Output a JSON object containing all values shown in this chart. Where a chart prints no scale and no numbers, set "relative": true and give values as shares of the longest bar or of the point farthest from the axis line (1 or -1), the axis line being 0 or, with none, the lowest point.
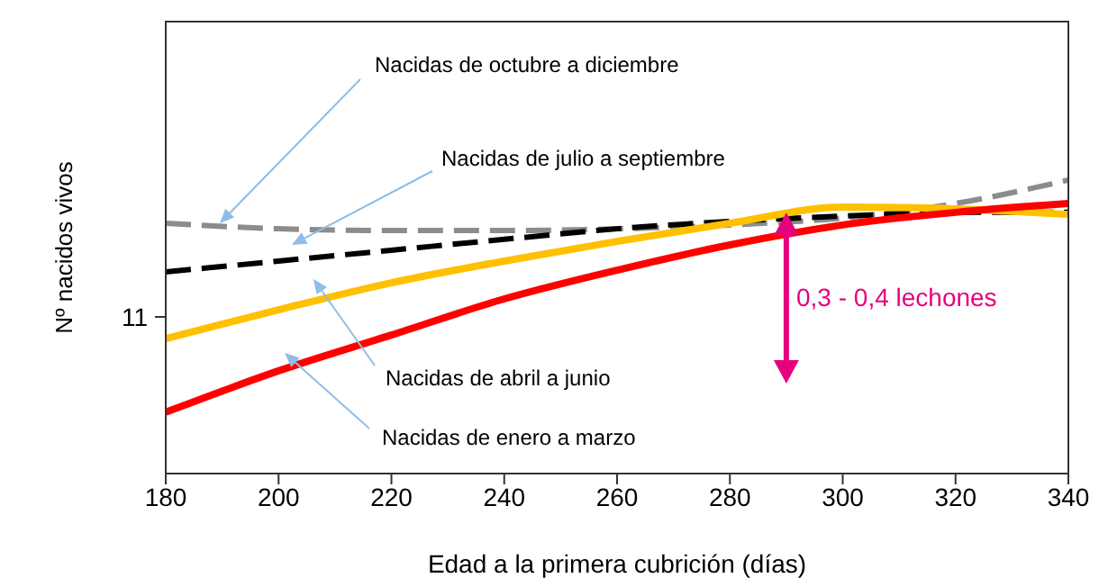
{
  "chart_data": {
    "type": "line",
    "relative": true,
    "xlabel": "Edad a la primera cubrición (días)",
    "ylabel": "Nº nacidos vivos",
    "x": [
      180,
      200,
      220,
      240,
      260,
      280,
      300,
      320,
      340
    ],
    "xlim": [
      180,
      340
    ],
    "xticks": [
      180,
      200,
      220,
      240,
      260,
      280,
      300,
      320,
      340
    ],
    "marker": "none",
    "series": [
      {
        "name": "Nacidas de octubre a diciembre",
        "color": "#8c8c8c",
        "line_style": "dashed",
        "values": [
          0.853,
          0.834,
          0.828,
          0.828,
          0.834,
          0.847,
          0.871,
          0.92,
          1
        ]
      },
      {
        "name": "Nacidas de julio a septiembre",
        "color": "#000000",
        "line_style": "dashed",
        "values": [
          0.687,
          0.724,
          0.761,
          0.798,
          0.834,
          0.859,
          0.877,
          0.89,
          0.89
        ]
      },
      {
        "name": "Nacidas de abril a junio",
        "color": "#ffc000",
        "line_style": "solid",
        "values": [
          0.46,
          0.558,
          0.65,
          0.724,
          0.791,
          0.853,
          0.908,
          0.902,
          0.883
        ]
      },
      {
        "name": "Nacidas de enero a marzo",
        "color": "#ff0000",
        "line_style": "solid",
        "values": [
          0.209,
          0.35,
          0.472,
          0.595,
          0.693,
          0.779,
          0.847,
          0.89,
          0.92
        ]
      }
    ],
    "annotations": [
      "11",
      "0,3 - 0,4 lechones"
    ]
  }
}
